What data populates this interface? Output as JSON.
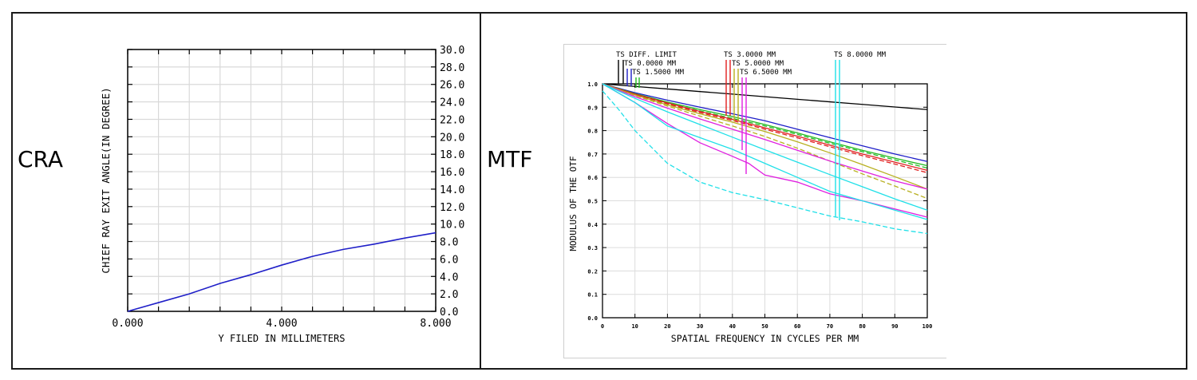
{
  "labels": {
    "left": "CRA",
    "right": "MTF"
  },
  "chart_data": [
    {
      "type": "line",
      "title": "",
      "xlabel": "Y FILED IN MILLIMETERS",
      "ylabel": "CHIEF RAY EXIT ANGLE(IN DEGREE)",
      "xlim": [
        0,
        8
      ],
      "ylim": [
        0,
        30
      ],
      "x_tick_labels": [
        "0.000",
        "4.000",
        "8.000"
      ],
      "x_tick_values": [
        0,
        4,
        8
      ],
      "x_minor_step": 0.8,
      "y_tick_labels": [
        "0.0",
        "2.0",
        "4.0",
        "6.0",
        "8.0",
        "10.0",
        "12.0",
        "14.0",
        "16.0",
        "18.0",
        "20.0",
        "22.0",
        "24.0",
        "26.0",
        "28.0",
        "30.0"
      ],
      "y_tick_values": [
        0,
        2,
        4,
        6,
        8,
        10,
        12,
        14,
        16,
        18,
        20,
        22,
        24,
        26,
        28,
        30
      ],
      "grid": true,
      "series": [
        {
          "color": "#1f1fc8",
          "x": [
            0,
            0.8,
            1.6,
            2.4,
            3.2,
            4.0,
            4.8,
            5.6,
            6.4,
            7.2,
            8.0
          ],
          "y": [
            0,
            1.0,
            2.0,
            3.2,
            4.2,
            5.3,
            6.3,
            7.1,
            7.7,
            8.4,
            9.0
          ]
        }
      ]
    },
    {
      "type": "line",
      "title": "",
      "xlabel": "SPATIAL FREQUENCY IN CYCLES PER MM",
      "ylabel": "MODULUS OF THE OTF",
      "xlim": [
        0,
        100
      ],
      "ylim": [
        0,
        1
      ],
      "x_tick_labels": [
        "0",
        "10",
        "20",
        "30",
        "40",
        "50",
        "60",
        "70",
        "80",
        "90",
        "100"
      ],
      "x_tick_values": [
        0,
        10,
        20,
        30,
        40,
        50,
        60,
        70,
        80,
        90,
        100
      ],
      "y_tick_labels": [
        "0.0",
        "0.1",
        "0.2",
        "0.3",
        "0.4",
        "0.5",
        "0.6",
        "0.7",
        "0.8",
        "0.9",
        "1.0"
      ],
      "y_tick_values": [
        0,
        0.1,
        0.2,
        0.3,
        0.4,
        0.5,
        0.6,
        0.7,
        0.8,
        0.9,
        1.0
      ],
      "grid": true,
      "legend": [
        {
          "label": "TS DIFF. LIMIT",
          "color": "#000000",
          "group": "left",
          "row": 0
        },
        {
          "label": "TS 0.0000 MM",
          "color": "#1f1fc8",
          "group": "left",
          "row": 1
        },
        {
          "label": "TS 1.5000 MM",
          "color": "#22bb22",
          "group": "left",
          "row": 2
        },
        {
          "label": "TS 3.0000 MM",
          "color": "#e02020",
          "group": "mid",
          "row": 0
        },
        {
          "label": "TS 5.0000 MM",
          "color": "#b8b020",
          "group": "mid",
          "row": 1
        },
        {
          "label": "TS 6.5000 MM",
          "color": "#e020e0",
          "group": "mid",
          "row": 2
        },
        {
          "label": "TS 8.0000 MM",
          "color": "#20e0e8",
          "group": "right",
          "row": 0
        }
      ],
      "series": [
        {
          "color": "#000000",
          "dash": false,
          "x": [
            0,
            10,
            20,
            30,
            40,
            50,
            60,
            70,
            80,
            90,
            100
          ],
          "y": [
            1,
            0.989,
            0.978,
            0.967,
            0.956,
            0.945,
            0.934,
            0.923,
            0.912,
            0.901,
            0.89
          ]
        },
        {
          "color": "#1f1fc8",
          "dash": false,
          "x": [
            0,
            10,
            20,
            30,
            40,
            50,
            60,
            70,
            80,
            90,
            100
          ],
          "y": [
            1,
            0.962,
            0.93,
            0.9,
            0.872,
            0.842,
            0.806,
            0.77,
            0.735,
            0.7,
            0.668
          ]
        },
        {
          "color": "#22bb22",
          "dash": false,
          "x": [
            0,
            10,
            20,
            30,
            40,
            50,
            60,
            70,
            80,
            90,
            100
          ],
          "y": [
            1,
            0.958,
            0.922,
            0.89,
            0.86,
            0.826,
            0.79,
            0.752,
            0.716,
            0.682,
            0.65
          ]
        },
        {
          "color": "#22bb22",
          "dash": true,
          "x": [
            0,
            10,
            20,
            30,
            40,
            50,
            60,
            70,
            80,
            90,
            100
          ],
          "y": [
            1,
            0.955,
            0.918,
            0.884,
            0.852,
            0.82,
            0.784,
            0.746,
            0.71,
            0.675,
            0.64
          ]
        },
        {
          "color": "#e02020",
          "dash": false,
          "x": [
            0,
            10,
            20,
            30,
            40,
            50,
            60,
            70,
            80,
            90,
            100
          ],
          "y": [
            1,
            0.956,
            0.918,
            0.882,
            0.848,
            0.812,
            0.776,
            0.738,
            0.7,
            0.665,
            0.63
          ]
        },
        {
          "color": "#e02020",
          "dash": true,
          "x": [
            0,
            10,
            20,
            30,
            40,
            50,
            60,
            70,
            80,
            90,
            100
          ],
          "y": [
            1,
            0.953,
            0.914,
            0.877,
            0.843,
            0.806,
            0.769,
            0.731,
            0.693,
            0.657,
            0.62
          ]
        },
        {
          "color": "#b8b020",
          "dash": false,
          "x": [
            0,
            10,
            20,
            30,
            40,
            50,
            60,
            70,
            80,
            90,
            100
          ],
          "y": [
            1,
            0.952,
            0.91,
            0.872,
            0.836,
            0.796,
            0.752,
            0.705,
            0.655,
            0.603,
            0.55
          ]
        },
        {
          "color": "#b8b020",
          "dash": true,
          "x": [
            0,
            10,
            20,
            30,
            40,
            50,
            60,
            70,
            80,
            90,
            100
          ],
          "y": [
            1,
            0.95,
            0.905,
            0.862,
            0.82,
            0.775,
            0.725,
            0.67,
            0.615,
            0.563,
            0.51
          ]
        },
        {
          "color": "#e020e0",
          "dash": false,
          "x": [
            0,
            10,
            20,
            30,
            40,
            50,
            60,
            70,
            80,
            90,
            100
          ],
          "y": [
            1,
            0.945,
            0.896,
            0.85,
            0.806,
            0.762,
            0.716,
            0.67,
            0.627,
            0.585,
            0.55
          ]
        },
        {
          "color": "#e020e0",
          "dash": false,
          "x": [
            0,
            5,
            10,
            20,
            30,
            40,
            45,
            50,
            60,
            70,
            80,
            90,
            100
          ],
          "y": [
            1,
            0.96,
            0.92,
            0.83,
            0.748,
            0.69,
            0.66,
            0.61,
            0.58,
            0.53,
            0.5,
            0.465,
            0.43
          ]
        },
        {
          "color": "#20e0e8",
          "dash": false,
          "x": [
            0,
            10,
            20,
            30,
            40,
            50,
            60,
            70,
            80,
            90,
            100
          ],
          "y": [
            1,
            0.938,
            0.88,
            0.826,
            0.772,
            0.718,
            0.665,
            0.612,
            0.56,
            0.508,
            0.46
          ]
        },
        {
          "color": "#20e0e8",
          "dash": false,
          "x": [
            0,
            5,
            10,
            20,
            30,
            40,
            50,
            60,
            70,
            80,
            90,
            100
          ],
          "y": [
            1,
            0.96,
            0.92,
            0.82,
            0.77,
            0.72,
            0.66,
            0.6,
            0.54,
            0.5,
            0.46,
            0.42
          ]
        },
        {
          "color": "#20e0e8",
          "dash": true,
          "x": [
            0,
            5,
            10,
            20,
            30,
            40,
            50,
            60,
            70,
            80,
            90,
            100
          ],
          "y": [
            0.97,
            0.89,
            0.8,
            0.66,
            0.58,
            0.535,
            0.505,
            0.47,
            0.435,
            0.41,
            0.38,
            0.36
          ]
        }
      ]
    }
  ]
}
